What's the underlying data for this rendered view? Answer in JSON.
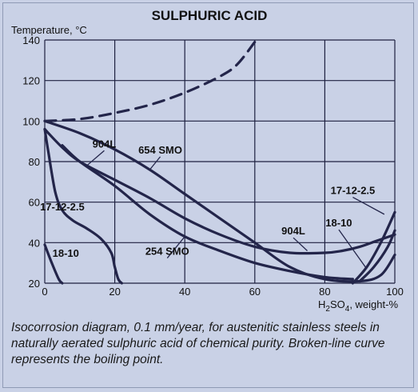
{
  "chart_data": {
    "type": "line",
    "title": "SULPHURIC ACID",
    "ylabel": "Temperature, °C",
    "xlabel_main": "H",
    "xlabel_sub": "2",
    "xlabel_rest": "SO",
    "xlabel_sub2": "4",
    "xlabel_tail": ", weight-%",
    "xlim": [
      0,
      100
    ],
    "ylim": [
      20,
      140
    ],
    "xticks": [
      "0",
      "20",
      "40",
      "60",
      "80",
      "100"
    ],
    "yticks": [
      "20",
      "40",
      "60",
      "80",
      "100",
      "120",
      "140"
    ],
    "grid": true,
    "series": [
      {
        "name": "",
        "style": "dashed",
        "x": [
          0,
          10,
          20,
          30,
          40,
          50,
          55,
          60
        ],
        "y": [
          100,
          101,
          104,
          108,
          114,
          122,
          128,
          139
        ]
      },
      {
        "name": "654 SMO",
        "style": "solid",
        "x": [
          0,
          10,
          20,
          30,
          40,
          50,
          60,
          70,
          80,
          90,
          96,
          100
        ],
        "y": [
          100,
          94,
          86,
          76,
          64,
          52,
          40,
          28,
          22,
          21,
          24,
          34
        ]
      },
      {
        "name": "904L",
        "style": "solid",
        "x": [
          0,
          5,
          10,
          20,
          30,
          40,
          50,
          60,
          70,
          80,
          85,
          90,
          95,
          100
        ],
        "y": [
          96,
          87,
          80,
          71,
          62,
          52,
          44,
          38,
          35,
          35,
          36,
          38,
          41,
          44
        ]
      },
      {
        "name": "254 SMO",
        "style": "solid",
        "x": [
          5,
          10,
          20,
          30,
          40,
          50,
          60,
          70,
          80,
          88
        ],
        "y": [
          88,
          80,
          68,
          54,
          43,
          36,
          30,
          26,
          23,
          22
        ]
      },
      {
        "name": "17-12-2.5",
        "style": "solid",
        "x": [
          0,
          1,
          3,
          5,
          8,
          12,
          16,
          19,
          20,
          21,
          22
        ],
        "y": [
          96,
          85,
          65,
          56,
          51,
          47,
          42,
          35,
          28,
          22,
          20
        ]
      },
      {
        "name": "18-10",
        "style": "solid",
        "x": [
          0,
          2,
          4,
          5
        ],
        "y": [
          39,
          30,
          22,
          20
        ]
      },
      {
        "name": "17-12-2.5",
        "style": "solid",
        "x": [
          88,
          92,
          96,
          100
        ],
        "y": [
          20,
          28,
          40,
          55
        ]
      },
      {
        "name": "18-10",
        "style": "solid",
        "x": [
          90,
          94,
          98,
          100
        ],
        "y": [
          21,
          28,
          38,
          46
        ]
      }
    ],
    "labels": [
      {
        "text": "904L",
        "x": 17,
        "y": 87,
        "ax": 12,
        "ay": 78
      },
      {
        "text": "654 SMO",
        "x": 33,
        "y": 84,
        "ax": 30,
        "ay": 76
      },
      {
        "text": "17-12-2.5",
        "x": 5,
        "y": 56,
        "ax": 0,
        "ay": 0
      },
      {
        "text": "254 SMO",
        "x": 35,
        "y": 34,
        "ax": 40,
        "ay": 43
      },
      {
        "text": "18-10",
        "x": 6,
        "y": 33,
        "ax": 0,
        "ay": 0
      },
      {
        "text": "904L",
        "x": 71,
        "y": 44,
        "ax": 75,
        "ay": 36
      },
      {
        "text": "18-10",
        "x": 84,
        "y": 48,
        "ax": 92,
        "ay": 27
      },
      {
        "text": "17-12-2.5",
        "x": 88,
        "y": 64,
        "ax": 97,
        "ay": 54
      }
    ]
  },
  "caption": "Isocorrosion diagram, 0.1 mm/year, for austenitic stainless steels in naturally aerated sulphuric acid of chemical purity. Broken-line curve represents the boiling point.",
  "colors": {
    "background": "#c9d1e6",
    "curve": "#23254a",
    "grid": "#1e2140",
    "text": "#111111"
  }
}
